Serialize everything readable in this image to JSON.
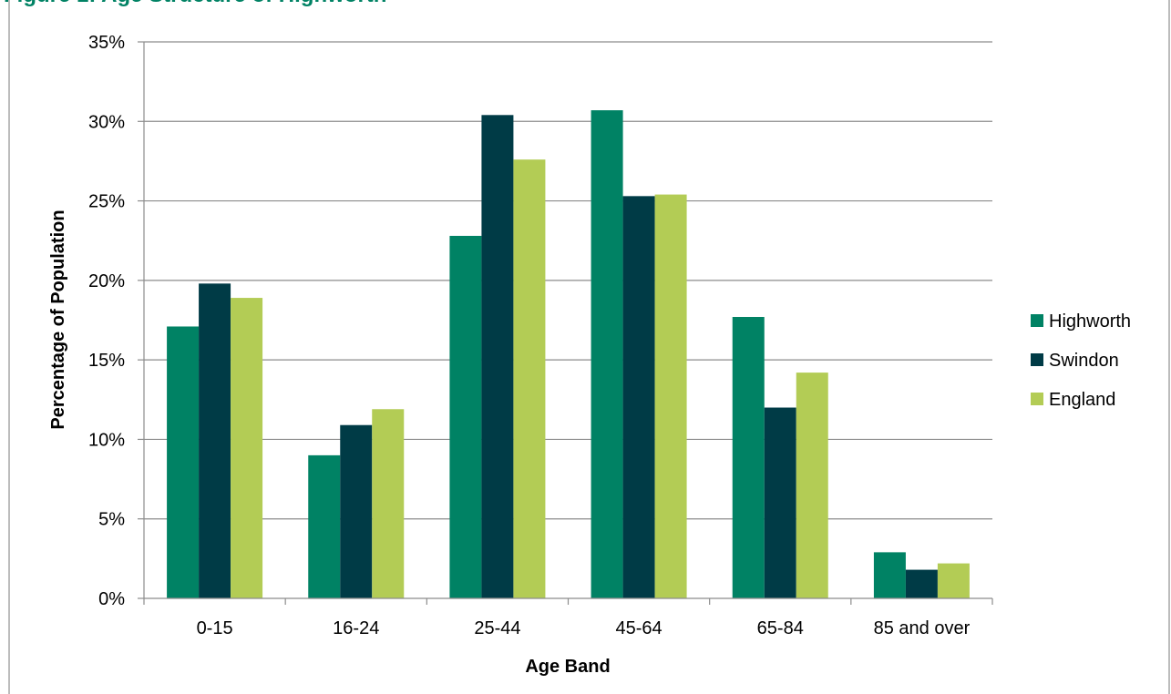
{
  "chart_data": {
    "type": "bar",
    "title": "",
    "xlabel": "Age Band",
    "ylabel": "Percentage of Population",
    "categories": [
      "0-15",
      "16-24",
      "25-44",
      "45-64",
      "65-84",
      "85 and over"
    ],
    "series": [
      {
        "name": "Highworth",
        "color": "#008264",
        "values": [
          17.1,
          9.0,
          22.8,
          30.7,
          17.7,
          2.9
        ]
      },
      {
        "name": "Swindon",
        "color": "#003b46",
        "values": [
          19.8,
          10.9,
          30.4,
          25.3,
          12.0,
          1.8
        ]
      },
      {
        "name": "England",
        "color": "#b3cc55",
        "values": [
          18.9,
          11.9,
          27.6,
          25.4,
          14.2,
          2.2
        ]
      }
    ],
    "ylim": [
      0,
      35
    ],
    "yticks": [
      0,
      5,
      10,
      15,
      20,
      25,
      30,
      35
    ],
    "ytick_labels": [
      "0%",
      "5%",
      "10%",
      "15%",
      "20%",
      "25%",
      "30%",
      "35%"
    ],
    "grid": "horizontal",
    "legend_position": "right"
  }
}
